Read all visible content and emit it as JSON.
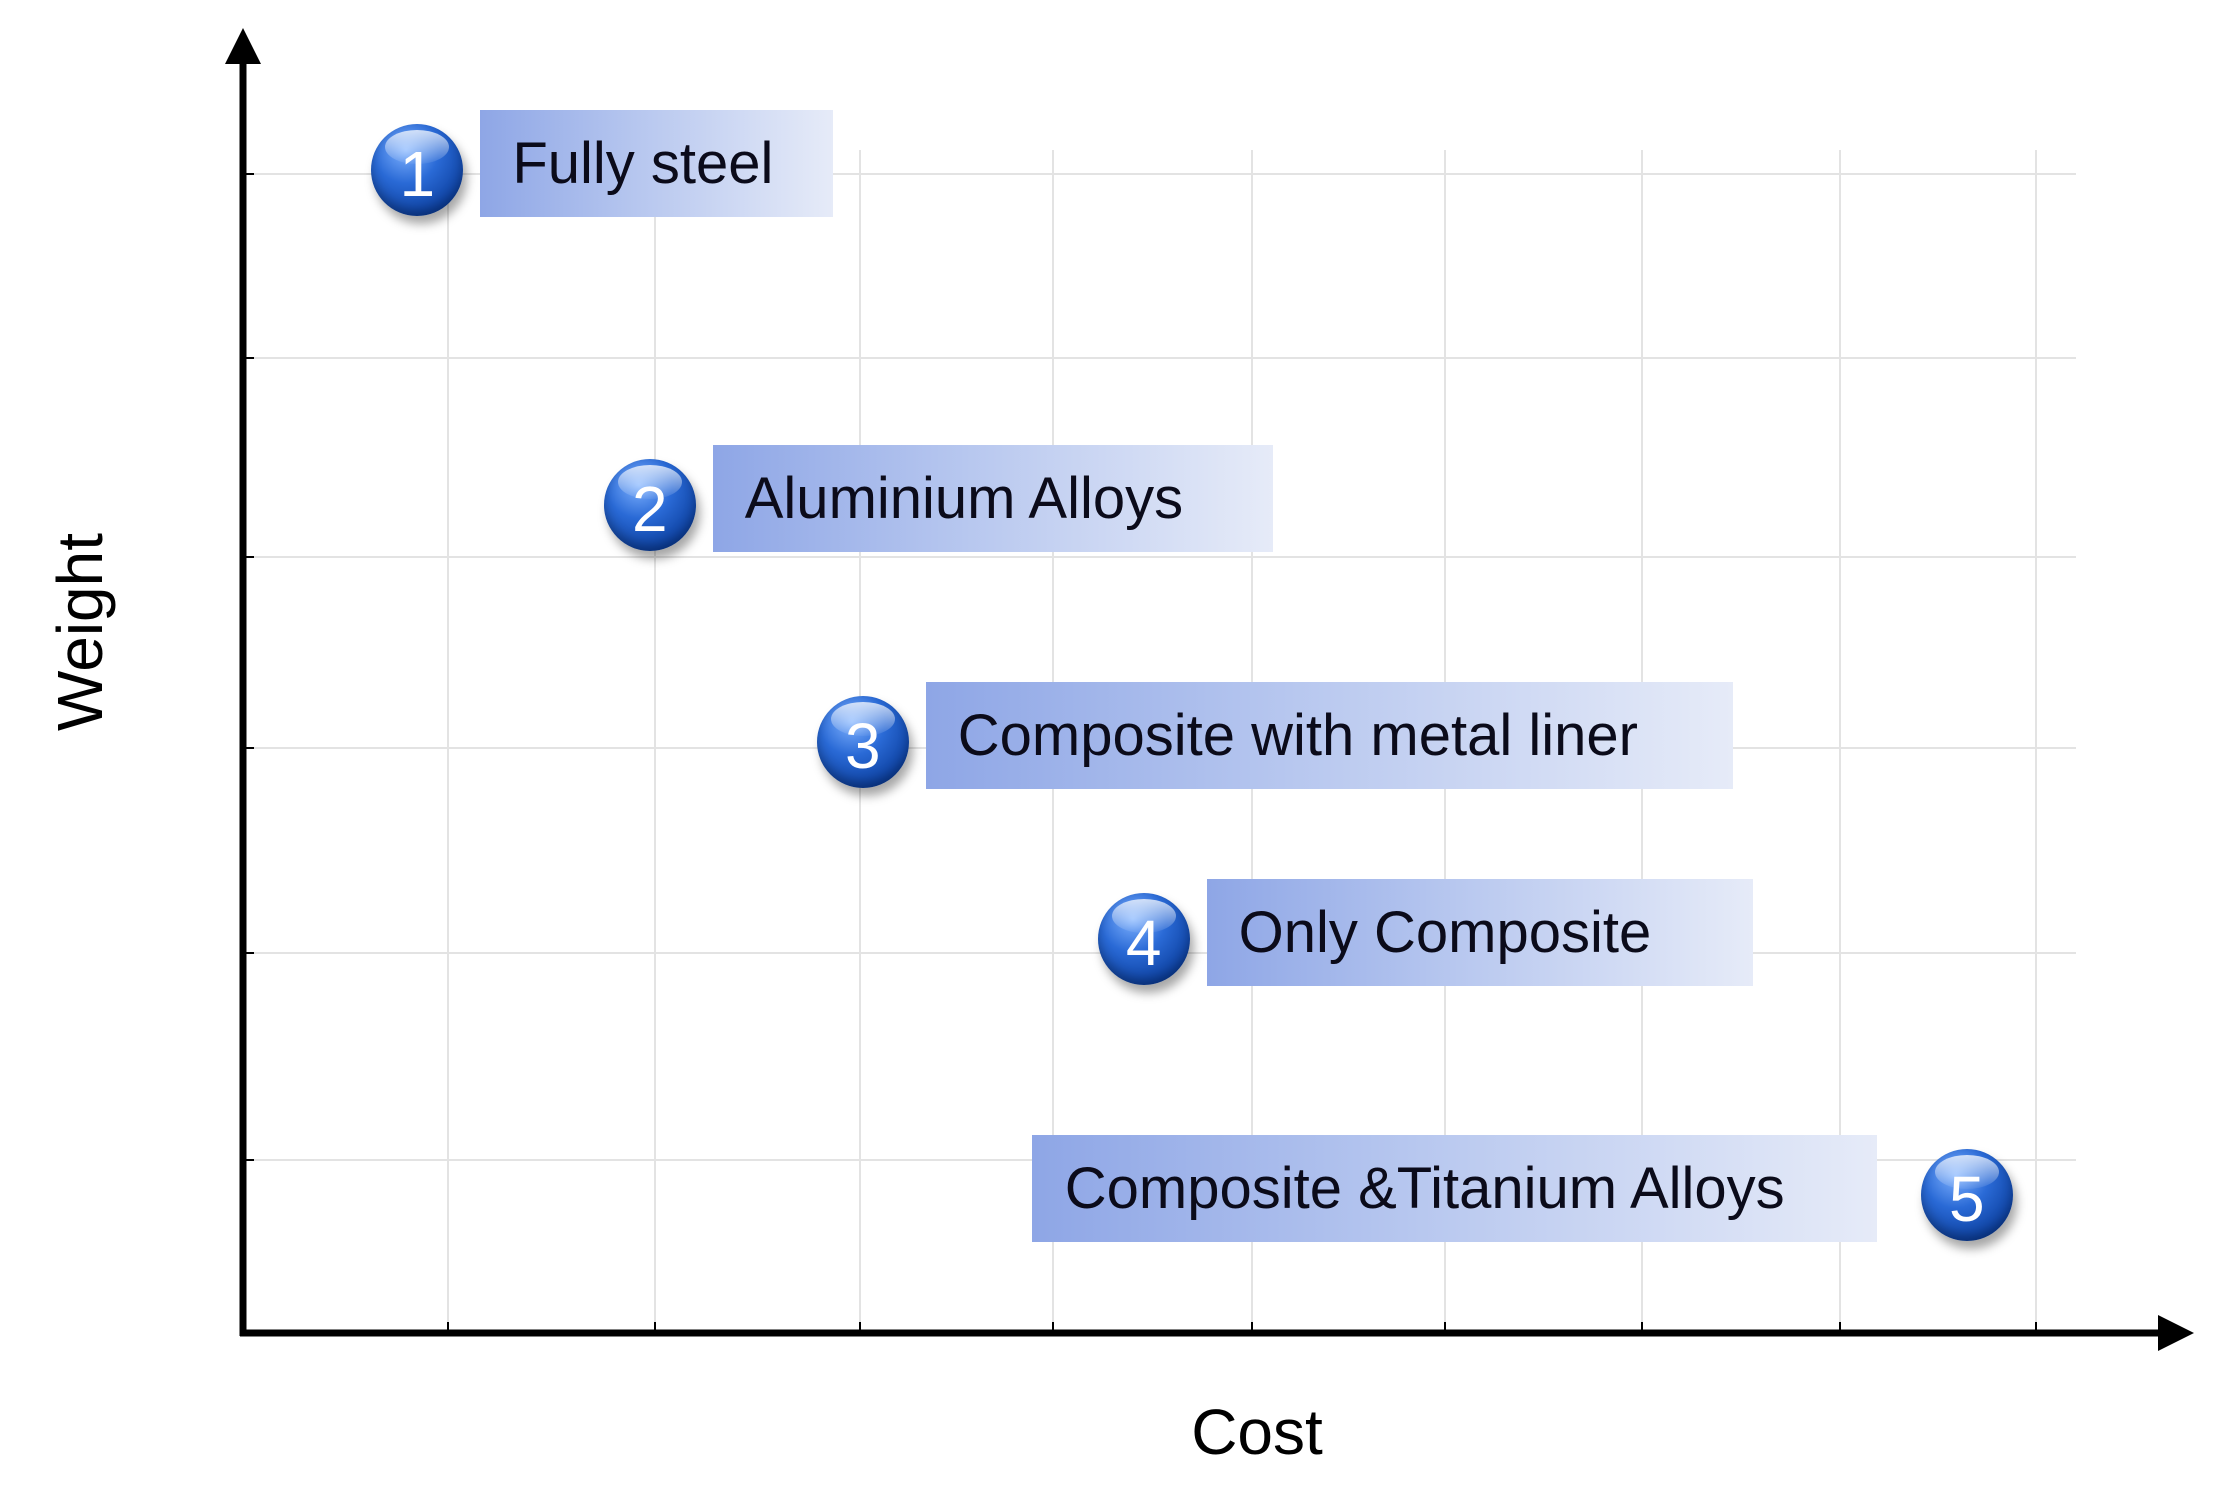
{
  "chart_data": {
    "type": "scatter",
    "xlabel": "Cost",
    "ylabel": "Weight",
    "xlim": [
      0,
      9.5
    ],
    "ylim": [
      0,
      6
    ],
    "grid": true,
    "points": [
      {
        "number": "1",
        "label": "Fully steel",
        "x": 0.9,
        "y": 5.9,
        "label_side": "right"
      },
      {
        "number": "2",
        "label": "Aluminium Alloys",
        "x": 2.1,
        "y": 4.2,
        "label_side": "right"
      },
      {
        "number": "3",
        "label": "Composite with metal liner",
        "x": 3.2,
        "y": 3.0,
        "label_side": "right"
      },
      {
        "number": "4",
        "label": "Only Composite",
        "x": 4.65,
        "y": 2.0,
        "label_side": "right"
      },
      {
        "number": "5",
        "label": "Composite &Titanium Alloys",
        "x": 8.9,
        "y": 0.7,
        "label_side": "left"
      }
    ]
  },
  "colors": {
    "badge": "#1a56c4",
    "label_gradient_start": "#8ea6e6",
    "label_gradient_end": "#e6ebf8",
    "grid": "#e3e3e3",
    "axis": "#000000"
  }
}
